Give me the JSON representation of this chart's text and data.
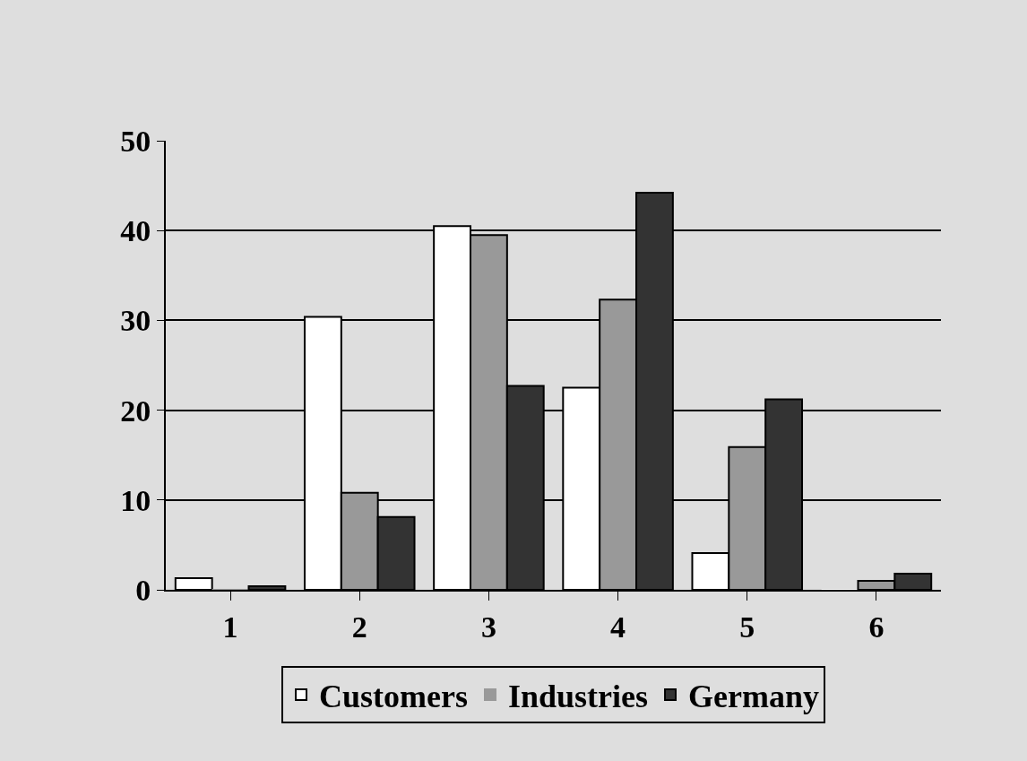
{
  "chart_data": {
    "type": "bar",
    "categories": [
      "1",
      "2",
      "3",
      "4",
      "5",
      "6"
    ],
    "series": [
      {
        "name": "Customers",
        "color": "#ffffff",
        "values": [
          1.3,
          30.4,
          40.5,
          22.5,
          4.1,
          0
        ]
      },
      {
        "name": "Industries",
        "color": "#999999",
        "values": [
          0,
          10.8,
          39.5,
          32.3,
          15.9,
          1.0
        ]
      },
      {
        "name": "Germany",
        "color": "#333333",
        "values": [
          0.4,
          8.1,
          22.7,
          44.2,
          21.2,
          1.8
        ]
      }
    ],
    "ylim": [
      0,
      50
    ],
    "yticks": [
      0,
      10,
      20,
      30,
      40,
      50
    ],
    "grid": "y",
    "legend": "bottom"
  }
}
